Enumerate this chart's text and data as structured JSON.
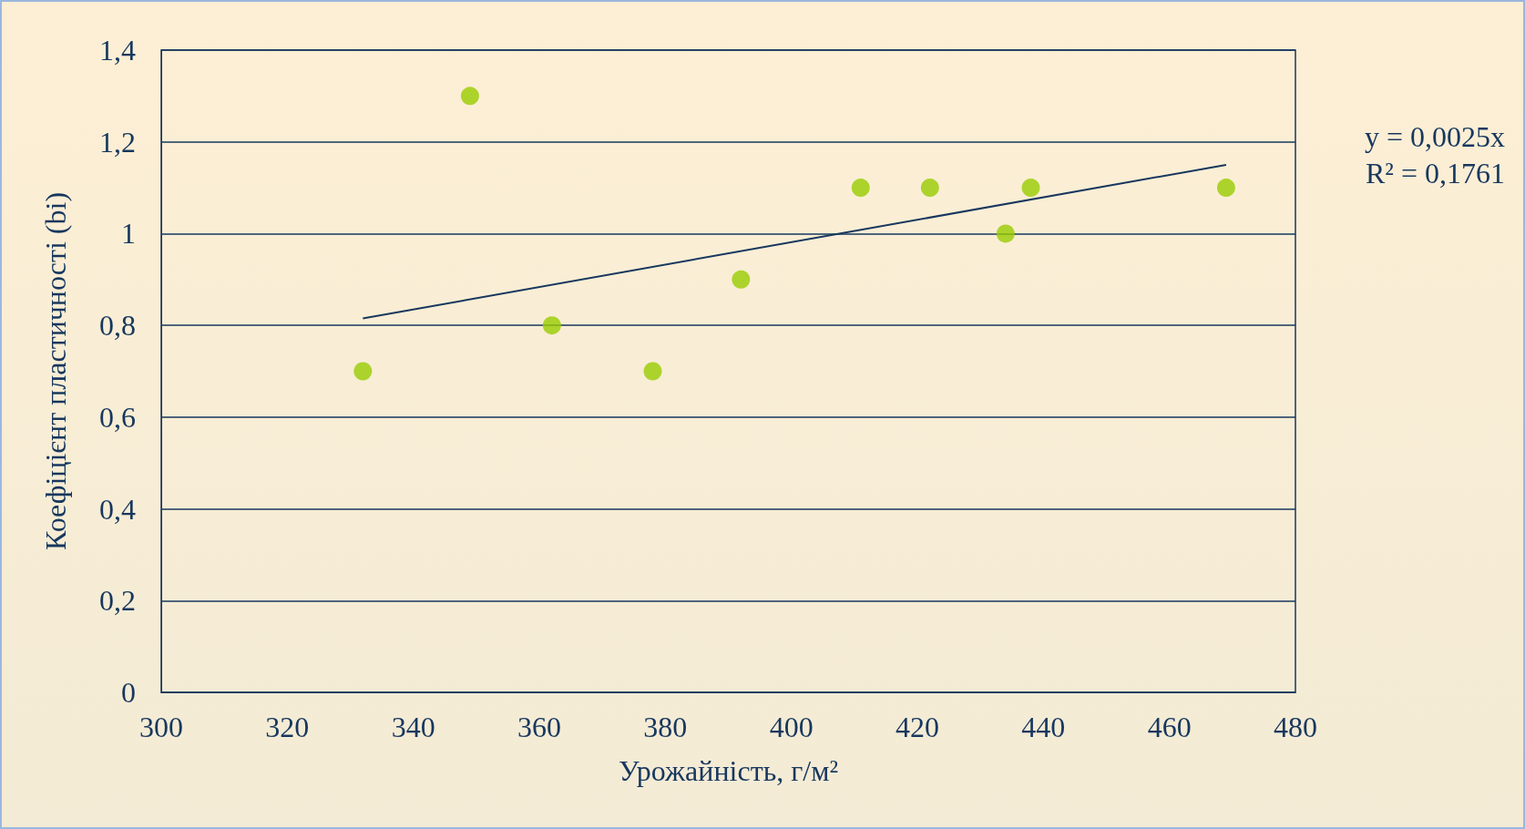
{
  "chart_data": {
    "type": "scatter",
    "xlabel": "Урожайність, г/м²",
    "ylabel": "Коефіцієнт пластичності (bi)",
    "x": [
      332,
      349,
      362,
      378,
      392,
      411,
      422,
      434,
      438,
      469
    ],
    "series": [
      {
        "color": "#99cc00",
        "marker": "circle",
        "values": [
          0.7,
          1.3,
          0.8,
          0.7,
          0.9,
          1.1,
          1.1,
          1.0,
          1.1,
          1.1
        ]
      },
      {
        "type": "line",
        "color": "#17375e",
        "marker": "none",
        "line_style": "solid",
        "x": [
          332,
          469
        ],
        "values": [
          0.815,
          1.15
        ]
      }
    ],
    "xlim": [
      300,
      480
    ],
    "xticks": [
      300,
      320,
      340,
      360,
      380,
      400,
      420,
      440,
      460,
      480
    ],
    "ylim": [
      0,
      1.4
    ],
    "yticks": [
      0,
      {
        "value": 0.2,
        "label": "0,2"
      },
      {
        "value": 0.4,
        "label": "0,4"
      },
      {
        "value": 0.6,
        "label": "0,6"
      },
      {
        "value": 0.8,
        "label": "0,8"
      },
      1,
      {
        "value": 1.2,
        "label": "1,2"
      },
      {
        "value": 1.4,
        "label": "1,4"
      }
    ],
    "grid": "y",
    "annotations": [
      "y = 0,0025x",
      "R² = 0,1761"
    ]
  }
}
